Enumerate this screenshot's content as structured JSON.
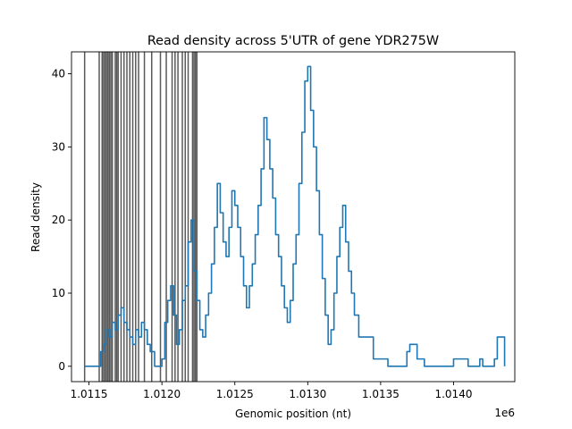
{
  "chart_data": {
    "type": "line",
    "title": "Read density across 5'UTR of gene YDR275W",
    "xlabel": "Genomic position (nt)",
    "ylabel": "Read density",
    "x_offset_label": "1e6",
    "xlim": [
      1.01138,
      1.01442
    ],
    "ylim": [
      -2.1,
      43
    ],
    "x_ticks": [
      {
        "value": 1.0115,
        "label": "1.0115"
      },
      {
        "value": 1.012,
        "label": "1.0120"
      },
      {
        "value": 1.0125,
        "label": "1.0125"
      },
      {
        "value": 1.013,
        "label": "1.0130"
      },
      {
        "value": 1.0135,
        "label": "1.0135"
      },
      {
        "value": 1.014,
        "label": "1.0140"
      }
    ],
    "y_ticks": [
      {
        "value": 0,
        "label": "0"
      },
      {
        "value": 10,
        "label": "10"
      },
      {
        "value": 20,
        "label": "20"
      },
      {
        "value": 30,
        "label": "30"
      },
      {
        "value": 40,
        "label": "40"
      }
    ],
    "line_color": "#1f77b4",
    "vline_color": "#000000",
    "series": [
      {
        "x": [
          1.01147,
          1.01156,
          1.01158,
          1.0116,
          1.01162,
          1.01164,
          1.01166,
          1.01168,
          1.0117,
          1.01172,
          1.01174,
          1.01176,
          1.01178,
          1.0118,
          1.01182,
          1.01184,
          1.01186,
          1.01188,
          1.0119,
          1.01192,
          1.01195,
          1.01198,
          1.012,
          1.01202,
          1.01204,
          1.01206,
          1.01208,
          1.0121,
          1.01212,
          1.01214,
          1.01216,
          1.01218,
          1.0122,
          1.01222,
          1.01224,
          1.01226,
          1.01228,
          1.0123,
          1.01232,
          1.01234,
          1.01236,
          1.01238,
          1.0124,
          1.01242,
          1.01244,
          1.01246,
          1.01248,
          1.0125,
          1.01252,
          1.01254,
          1.01256,
          1.01258,
          1.0126,
          1.01262,
          1.01264,
          1.01266,
          1.01268,
          1.0127,
          1.01272,
          1.01274,
          1.01276,
          1.01278,
          1.0128,
          1.01282,
          1.01284,
          1.01286,
          1.01288,
          1.0129,
          1.01292,
          1.01294,
          1.01296,
          1.01298,
          1.013,
          1.01302,
          1.01304,
          1.01306,
          1.01308,
          1.0131,
          1.01312,
          1.01314,
          1.01316,
          1.01318,
          1.0132,
          1.01322,
          1.01324,
          1.01326,
          1.01328,
          1.0133,
          1.01332,
          1.01335,
          1.01345,
          1.01355,
          1.01362,
          1.01365,
          1.01368,
          1.0137,
          1.01375,
          1.0138,
          1.01385,
          1.0139,
          1.01395,
          1.014,
          1.01405,
          1.0141,
          1.01415,
          1.01418,
          1.0142,
          1.01425,
          1.01428,
          1.0143,
          1.01435
        ],
        "y": [
          0,
          0,
          2,
          3,
          5,
          4,
          6,
          5,
          7,
          8,
          6,
          5,
          4,
          3,
          5,
          4,
          6,
          5,
          3,
          2,
          0,
          0,
          1,
          6,
          9,
          11,
          7,
          3,
          5,
          9,
          11,
          17,
          20,
          13,
          9,
          5,
          4,
          7,
          10,
          14,
          19,
          25,
          21,
          17,
          15,
          19,
          24,
          22,
          19,
          15,
          11,
          8,
          11,
          14,
          18,
          22,
          27,
          34,
          31,
          27,
          23,
          18,
          15,
          11,
          8,
          6,
          9,
          14,
          18,
          25,
          32,
          39,
          41,
          35,
          30,
          24,
          18,
          12,
          7,
          3,
          5,
          10,
          15,
          19,
          22,
          17,
          13,
          10,
          7,
          4,
          1,
          0,
          0,
          0,
          2,
          3,
          1,
          0,
          0,
          0,
          0,
          1,
          1,
          0,
          0,
          1,
          0,
          0,
          1,
          4,
          0
        ]
      }
    ],
    "vlines": [
      1.01147,
      1.01157,
      1.01159,
      1.0116,
      1.01161,
      1.01162,
      1.01163,
      1.01164,
      1.01165,
      1.01166,
      1.01168,
      1.01169,
      1.0117,
      1.01172,
      1.01174,
      1.01176,
      1.01178,
      1.0118,
      1.01182,
      1.01184,
      1.01188,
      1.01193,
      1.01199,
      1.01203,
      1.01207,
      1.01209,
      1.01211,
      1.01214,
      1.01216,
      1.01218,
      1.01221,
      1.01222,
      1.01223,
      1.01224
    ]
  }
}
